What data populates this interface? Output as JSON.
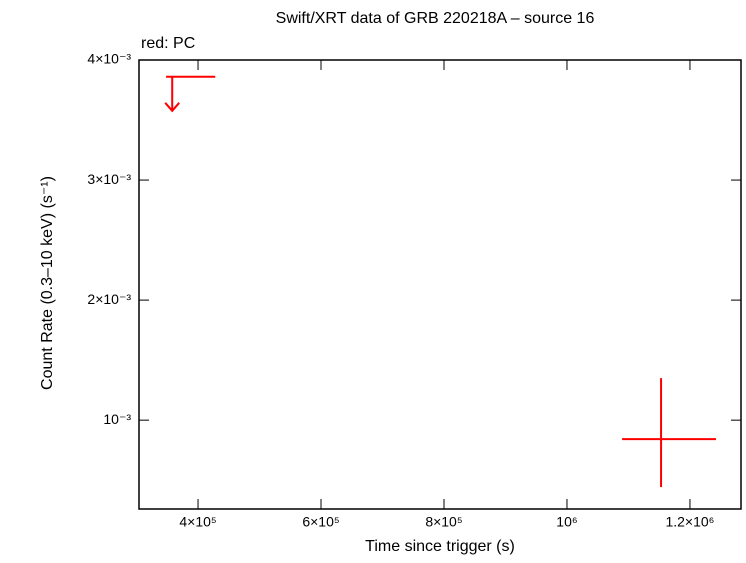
{
  "chart_data": {
    "type": "scatter",
    "title": "Swift/XRT data of GRB 220218A – source 16",
    "annotation": "red: PC",
    "x_label": "Time since trigger (s)",
    "y_label": "Count Rate (0.3–10 keV) (s⁻¹)",
    "xlim": [
      304000,
      1283000
    ],
    "ylim": [
      0.00026,
      0.004
    ],
    "xticks": [
      {
        "value": 400000,
        "label": "4×10⁵"
      },
      {
        "value": 600000,
        "label": "6×10⁵"
      },
      {
        "value": 800000,
        "label": "8×10⁵"
      },
      {
        "value": 1000000,
        "label": "10⁶"
      },
      {
        "value": 1200000,
        "label": "1.2×10⁶"
      }
    ],
    "yticks": [
      {
        "value": 0.001,
        "label": "10⁻³"
      },
      {
        "value": 0.002,
        "label": "2×10⁻³"
      },
      {
        "value": 0.003,
        "label": "3×10⁻³"
      },
      {
        "value": 0.004,
        "label": "4×10⁻³"
      }
    ],
    "series": [
      {
        "color": "#ff0000",
        "x": [
          1153000
        ],
        "values": [
          0.000842
        ],
        "xerr_minus": [
          63400
        ],
        "xerr_plus": [
          89400
        ],
        "yerr_minus": [
          0.0004
        ],
        "yerr_plus": [
          0.000508
        ]
      }
    ],
    "upper_limits": {
      "color": "#ff0000",
      "x": [
        358000
      ],
      "values": [
        0.00386
      ],
      "xerr_minus": [
        10000
      ],
      "xerr_plus": [
        70000
      ]
    }
  }
}
